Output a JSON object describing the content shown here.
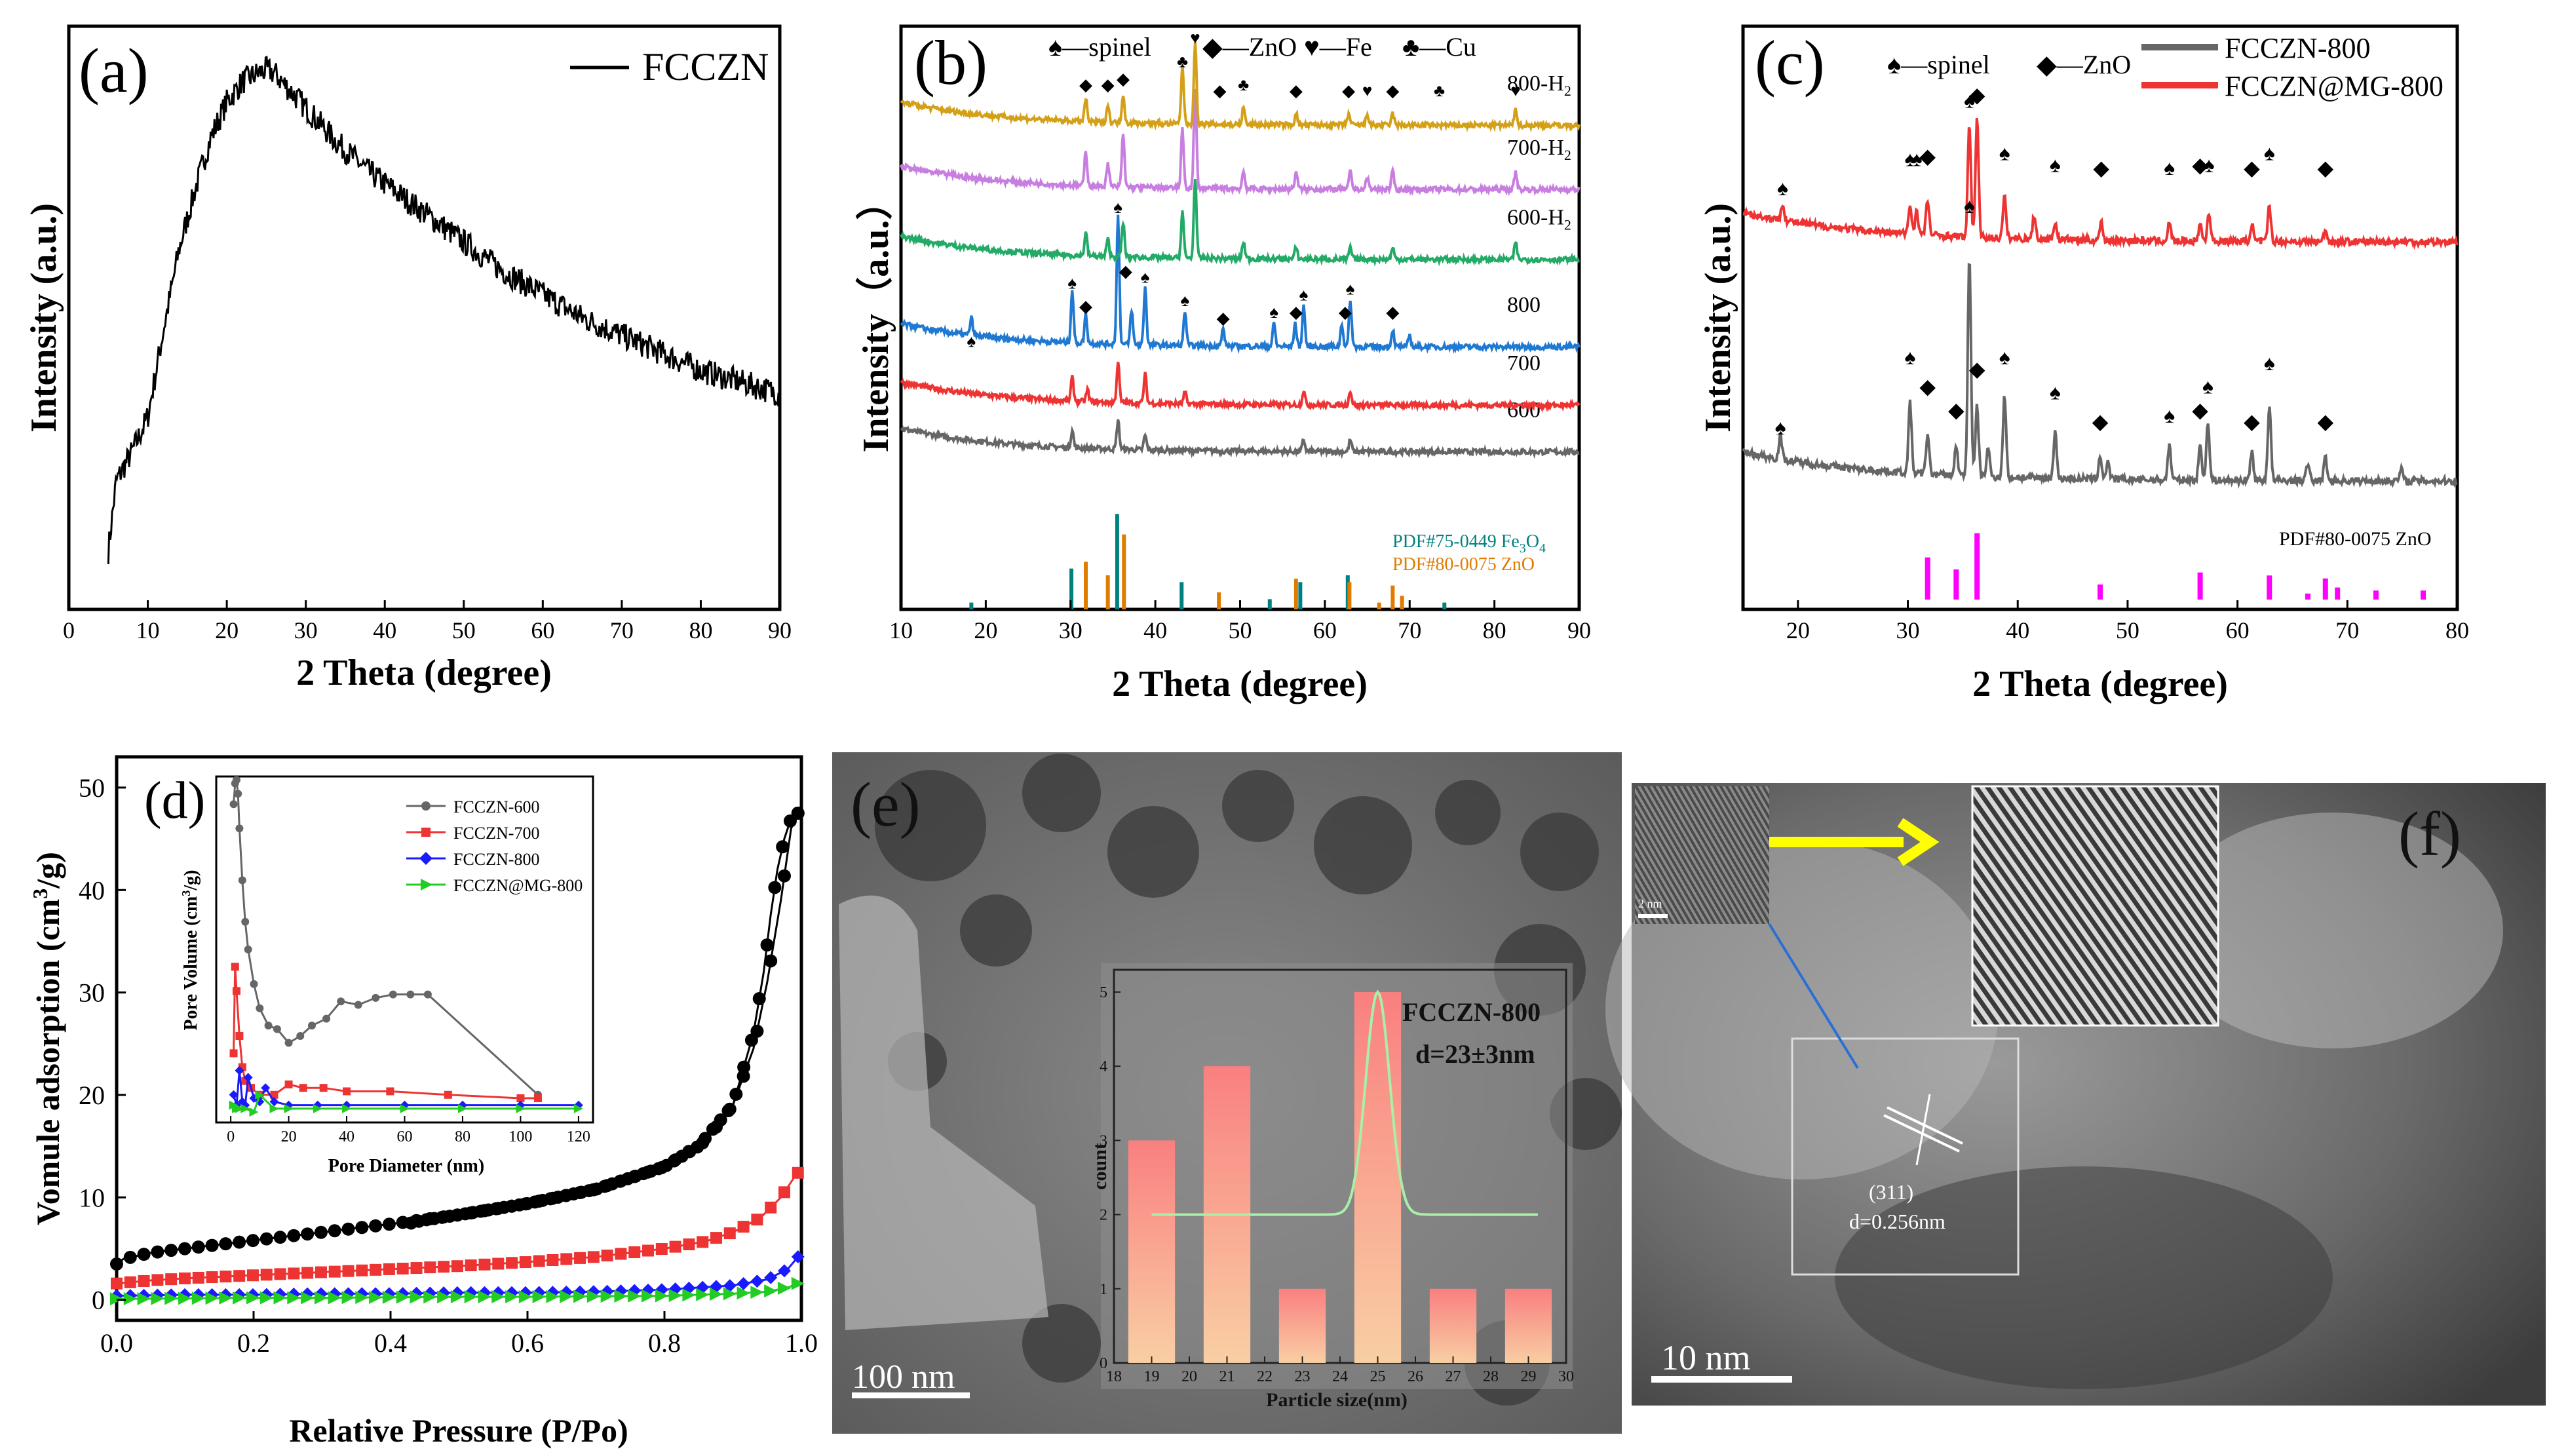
{
  "figure_colors": {
    "black": "#000000",
    "gray": "#666666",
    "red": "#ee3333",
    "blue": "#1a1aff",
    "green": "#22cc22",
    "magenta": "#ff00ff",
    "gold": "#d4a017",
    "violet": "#c77ee0",
    "teal_green": "#22aa66",
    "xrd_blue": "#1f78d1",
    "pdf_teal": "#008080",
    "pdf_orange": "#e07b00"
  },
  "panels": {
    "a": {
      "label": "(a)",
      "legend": "FCCZN"
    },
    "b": {
      "label": "(b)",
      "legend_items": [
        "♠—spinel",
        "◆—ZnO",
        "♥—Fe",
        "♣—Cu"
      ],
      "ref_labels": [
        "PDF#75-0449 Fe",
        "3",
        "O",
        "4",
        "PDF#80-0075 ZnO"
      ]
    },
    "c": {
      "label": "(c)",
      "legend_items": [
        "♠—spinel",
        "◆—ZnO"
      ],
      "series_legend": [
        "FCCZN-800",
        "FCCZN@MG-800"
      ],
      "ref_label": "PDF#80-0075 ZnO"
    },
    "d": {
      "label": "(d)",
      "inset_legend": [
        "FCCZN-600",
        "FCCZN-700",
        "FCCZN-800",
        "FCCZN@MG-800"
      ]
    },
    "e": {
      "label": "(e)",
      "scale_bar": "100 nm",
      "inset_title": "FCCZN-800",
      "inset_size": "d=23±3nm"
    },
    "f": {
      "label": "(f)",
      "scale_bar": "10 nm",
      "inset_scale": "2 nm",
      "plane": "(311)",
      "d_spacing": "d=0.256nm"
    }
  },
  "chart_data": [
    {
      "type": "line",
      "id": "a",
      "title": "",
      "xlabel": "2 Theta (degree)",
      "ylabel": "Intensity (a.u.)",
      "xlim": [
        0,
        90
      ],
      "ylim": [
        0,
        100
      ],
      "xticks": [
        "0",
        "10",
        "20",
        "30",
        "40",
        "50",
        "60",
        "70",
        "80",
        "90"
      ],
      "series": [
        {
          "name": "FCCZN",
          "x": [
            5,
            6,
            8,
            10,
            12,
            14,
            16,
            18,
            20,
            22,
            24,
            25,
            26,
            28,
            30,
            34,
            38,
            42,
            46,
            50,
            55,
            60,
            65,
            70,
            75,
            80,
            85,
            90
          ],
          "y": [
            10,
            22,
            27,
            33,
            48,
            62,
            72,
            81,
            87,
            90.5,
            92,
            92.5,
            92,
            89,
            86,
            80,
            75,
            71,
            67,
            63,
            58,
            54,
            50,
            47,
            44,
            41,
            39,
            37
          ]
        }
      ]
    },
    {
      "type": "line",
      "id": "b",
      "xlabel": "2 Theta (degree)",
      "ylabel": "Intensity（a.u.）",
      "xlim": [
        10,
        90
      ],
      "ylim": [
        0,
        100
      ],
      "xticks": [
        "10",
        "20",
        "30",
        "40",
        "50",
        "60",
        "70",
        "80",
        "90"
      ],
      "series": [
        {
          "name": "600",
          "label": "600",
          "offset": 27,
          "peaks": [
            [
              30.2,
              3
            ],
            [
              35.6,
              5
            ],
            [
              38.8,
              2.5
            ],
            [
              57.5,
              2
            ],
            [
              63,
              2
            ]
          ]
        },
        {
          "name": "700",
          "label": "700",
          "offset": 35,
          "peaks": [
            [
              30.2,
              4
            ],
            [
              32,
              2
            ],
            [
              35.6,
              7
            ],
            [
              38.8,
              5
            ],
            [
              43.5,
              2
            ],
            [
              57.5,
              2.5
            ],
            [
              63,
              2.5
            ]
          ]
        },
        {
          "name": "800",
          "label": "800",
          "offset": 45,
          "peaks": [
            [
              18.3,
              3
            ],
            [
              30.2,
              9
            ],
            [
              31.8,
              5
            ],
            [
              35.6,
              22
            ],
            [
              37.2,
              6
            ],
            [
              38.8,
              10
            ],
            [
              43.5,
              6
            ],
            [
              48,
              3
            ],
            [
              54,
              4
            ],
            [
              56.5,
              4
            ],
            [
              57.5,
              7
            ],
            [
              62,
              4
            ],
            [
              63,
              8
            ],
            [
              68,
              3
            ],
            [
              70,
              2
            ]
          ]
        },
        {
          "name": "600-H2",
          "label": "600-H",
          "offset": 60,
          "peaks": [
            [
              31.8,
              4
            ],
            [
              34.4,
              3
            ],
            [
              36.2,
              6
            ],
            [
              43.2,
              8
            ],
            [
              44.7,
              14
            ],
            [
              50.4,
              3
            ],
            [
              56.6,
              2
            ],
            [
              63,
              2
            ],
            [
              68,
              2
            ],
            [
              82.5,
              3
            ]
          ]
        },
        {
          "name": "700-H2",
          "label": "700-H",
          "offset": 72,
          "peaks": [
            [
              31.8,
              6
            ],
            [
              34.4,
              4
            ],
            [
              36.2,
              9
            ],
            [
              43.2,
              10
            ],
            [
              44.7,
              17
            ],
            [
              50.4,
              3
            ],
            [
              56.6,
              3
            ],
            [
              63,
              3
            ],
            [
              65,
              2
            ],
            [
              68,
              3
            ],
            [
              82.5,
              3
            ]
          ]
        },
        {
          "name": "800-H2",
          "label": "800-H",
          "offset": 83,
          "peaks": [
            [
              31.8,
              4
            ],
            [
              34.4,
              3
            ],
            [
              36.2,
              5
            ],
            [
              43.2,
              10
            ],
            [
              44.7,
              14
            ],
            [
              50.4,
              3
            ],
            [
              56.6,
              2
            ],
            [
              62.8,
              2
            ],
            [
              65,
              2
            ],
            [
              68,
              2
            ],
            [
              82.5,
              3
            ]
          ]
        }
      ],
      "reference_sticks": {
        "Fe3O4": {
          "x": [
            18.3,
            30.1,
            35.5,
            43.1,
            53.5,
            57.1,
            62.7,
            74.1
          ],
          "h": [
            2,
            12,
            28,
            8,
            3,
            8,
            10,
            2
          ]
        },
        "ZnO": {
          "x": [
            31.8,
            34.4,
            36.3,
            47.5,
            56.6,
            62.9,
            66.4,
            68,
            69.1
          ],
          "h": [
            14,
            10,
            22,
            5,
            9,
            8,
            2,
            7,
            4
          ]
        }
      }
    },
    {
      "type": "line",
      "id": "c",
      "xlabel": "2 Theta (degree)",
      "ylabel": "Intensity (a.u.)",
      "xlim": [
        15,
        80
      ],
      "ylim": [
        0,
        100
      ],
      "xticks": [
        "20",
        "30",
        "40",
        "50",
        "60",
        "70",
        "80"
      ],
      "series": [
        {
          "name": "FCCZN-800",
          "offset": 22,
          "peaks": [
            [
              18.4,
              4
            ],
            [
              30.2,
              12
            ],
            [
              31.8,
              7
            ],
            [
              34.4,
              5
            ],
            [
              35.6,
              38
            ],
            [
              36.3,
              12
            ],
            [
              37.3,
              5
            ],
            [
              38.8,
              14
            ],
            [
              43.4,
              8
            ],
            [
              47.5,
              4
            ],
            [
              48.2,
              3
            ],
            [
              53.8,
              6
            ],
            [
              56.6,
              6
            ],
            [
              57.3,
              10
            ],
            [
              61.3,
              5
            ],
            [
              62.9,
              13
            ],
            [
              66.4,
              3
            ],
            [
              68,
              4
            ],
            [
              74.9,
              2
            ]
          ]
        },
        {
          "name": "FCCZN@MG-800",
          "offset": 63,
          "peaks": [
            [
              18.6,
              3
            ],
            [
              30.2,
              5
            ],
            [
              30.8,
              4
            ],
            [
              31.8,
              6
            ],
            [
              35.6,
              19
            ],
            [
              36.3,
              20
            ],
            [
              38.8,
              7
            ],
            [
              41.5,
              4
            ],
            [
              43.4,
              3
            ],
            [
              47.6,
              3
            ],
            [
              53.8,
              3
            ],
            [
              56.6,
              3
            ],
            [
              57.4,
              5
            ],
            [
              61.3,
              3
            ],
            [
              62.9,
              6
            ],
            [
              68,
              2
            ]
          ]
        }
      ],
      "reference_sticks": {
        "ZnO": {
          "x": [
            31.8,
            34.4,
            36.3,
            47.5,
            56.6,
            62.9,
            66.4,
            68,
            69.1,
            72.6,
            76.9
          ],
          "h": [
            14,
            10,
            22,
            5,
            9,
            8,
            2,
            7,
            4,
            3,
            3
          ]
        }
      }
    },
    {
      "type": "scatter",
      "id": "d",
      "xlabel": "Relative Pressure (P/Po)",
      "ylabel": "Vomule adsorption (cm",
      "ylabel_sup": "3",
      "ylabel_tail": "/g)",
      "xlim": [
        0,
        1
      ],
      "ylim": [
        -2,
        53
      ],
      "xticks": [
        "0.0",
        "0.2",
        "0.4",
        "0.6",
        "0.8",
        "1.0"
      ],
      "yticks": [
        "0",
        "10",
        "20",
        "30",
        "40",
        "50"
      ],
      "series": [
        {
          "name": "FCCZN-600 adsorption",
          "x": [
            0.0,
            0.01,
            0.05,
            0.1,
            0.2,
            0.3,
            0.4,
            0.5,
            0.6,
            0.7,
            0.8,
            0.86,
            0.9,
            0.93,
            0.95,
            0.97,
            0.985,
            0.995
          ],
          "y": [
            3.5,
            4,
            4.6,
            5,
            5.8,
            6.6,
            7.4,
            8.3,
            9.4,
            10.8,
            13,
            15.5,
            19,
            24.5,
            31,
            39,
            46,
            47.5
          ]
        },
        {
          "name": "FCCZN-600 desorption",
          "x": [
            0.995,
            0.985,
            0.975,
            0.965,
            0.955,
            0.945,
            0.93,
            0.9,
            0.85,
            0.8,
            0.7,
            0.6,
            0.5,
            0.45,
            0.43
          ],
          "y": [
            47.5,
            47,
            45,
            42,
            37.5,
            32,
            26,
            19,
            15,
            13,
            10.8,
            9.4,
            8.3,
            7.8,
            7.5
          ]
        },
        {
          "name": "FCCZN-700",
          "x": [
            0.0,
            0.05,
            0.1,
            0.2,
            0.3,
            0.4,
            0.5,
            0.6,
            0.7,
            0.8,
            0.86,
            0.9,
            0.94,
            0.97,
            0.99,
            0.995
          ],
          "y": [
            1.6,
            1.9,
            2.1,
            2.4,
            2.7,
            3,
            3.3,
            3.7,
            4.2,
            5,
            5.7,
            6.6,
            8,
            10,
            12,
            12.4
          ]
        },
        {
          "name": "FCCZN-800",
          "x": [
            0.0,
            0.1,
            0.2,
            0.3,
            0.4,
            0.5,
            0.6,
            0.7,
            0.8,
            0.9,
            0.95,
            0.98,
            0.995
          ],
          "y": [
            0.4,
            0.5,
            0.5,
            0.6,
            0.6,
            0.7,
            0.7,
            0.8,
            1,
            1.4,
            2,
            3,
            4.2
          ]
        },
        {
          "name": "FCCZN@MG-800",
          "x": [
            0.0,
            0.1,
            0.2,
            0.3,
            0.4,
            0.5,
            0.6,
            0.7,
            0.8,
            0.9,
            0.95,
            0.98,
            0.995
          ],
          "y": [
            0.1,
            0.15,
            0.2,
            0.2,
            0.25,
            0.3,
            0.3,
            0.35,
            0.4,
            0.6,
            0.8,
            1.2,
            1.6
          ]
        }
      ],
      "inset": {
        "type": "line",
        "xlabel": "Pore Diameter (nm)",
        "ylabel": "Pore Volume (cm",
        "ylabel_sup": "3",
        "ylabel_tail": "/g)",
        "xlim": [
          -5,
          125
        ],
        "ylim": [
          0,
          100
        ],
        "xticks": [
          "0",
          "20",
          "40",
          "60",
          "80",
          "100",
          "120"
        ],
        "series": [
          {
            "name": "FCCZN-600",
            "x": [
              1,
              1.5,
              2,
              2.5,
              3,
              4,
              5,
              6,
              8,
              10,
              13,
              16,
              20,
              24,
              28,
              33,
              38,
              44,
              50,
              56,
              62,
              68,
              106
            ],
            "y": [
              92,
              98,
              99,
              95,
              85,
              70,
              58,
              50,
              40,
              33,
              28,
              27,
              23,
              25,
              28,
              30,
              35,
              34,
              36,
              37,
              37,
              37,
              8
            ]
          },
          {
            "name": "FCCZN-700",
            "x": [
              1,
              1.5,
              2,
              3,
              4,
              5,
              7,
              10,
              15,
              20,
              25,
              32,
              40,
              55,
              75,
              100,
              106
            ],
            "y": [
              20,
              45,
              38,
              25,
              16,
              12,
              10,
              8,
              8,
              11,
              10,
              10,
              9,
              9,
              8,
              7,
              7
            ]
          },
          {
            "name": "FCCZN-800",
            "x": [
              1,
              2,
              3,
              4,
              5,
              6,
              8,
              10,
              12,
              15,
              20,
              30,
              40,
              60,
              80,
              100,
              120
            ],
            "y": [
              8,
              5,
              15,
              6,
              5,
              13,
              7,
              6,
              10,
              6,
              5,
              5,
              5,
              5,
              5,
              5,
              5
            ]
          },
          {
            "name": "FCCZN@MG-800",
            "x": [
              1,
              2,
              3,
              5,
              8,
              10,
              15,
              20,
              30,
              40,
              60,
              80,
              100,
              120
            ],
            "y": [
              5,
              4,
              4,
              4,
              3,
              8,
              4,
              4,
              4,
              4,
              4,
              4,
              4,
              4
            ]
          }
        ]
      }
    },
    {
      "type": "bar",
      "id": "e-inset",
      "xlabel": "Particle size(nm)",
      "ylabel": "count",
      "xlim": [
        18,
        30
      ],
      "ylim": [
        0,
        5.3
      ],
      "xticks": [
        "18",
        "19",
        "20",
        "21",
        "22",
        "23",
        "24",
        "25",
        "26",
        "27",
        "28",
        "29",
        "30"
      ],
      "yticks": [
        "0",
        "1",
        "2",
        "3",
        "4",
        "5"
      ],
      "categories": [
        "19",
        "21",
        "23",
        "25",
        "27",
        "29"
      ],
      "values": [
        3,
        4,
        1,
        5,
        1,
        1
      ],
      "fit": {
        "type": "gaussian",
        "center": 25,
        "height": 5,
        "baseline": 2,
        "sigma": 0.45
      }
    }
  ]
}
